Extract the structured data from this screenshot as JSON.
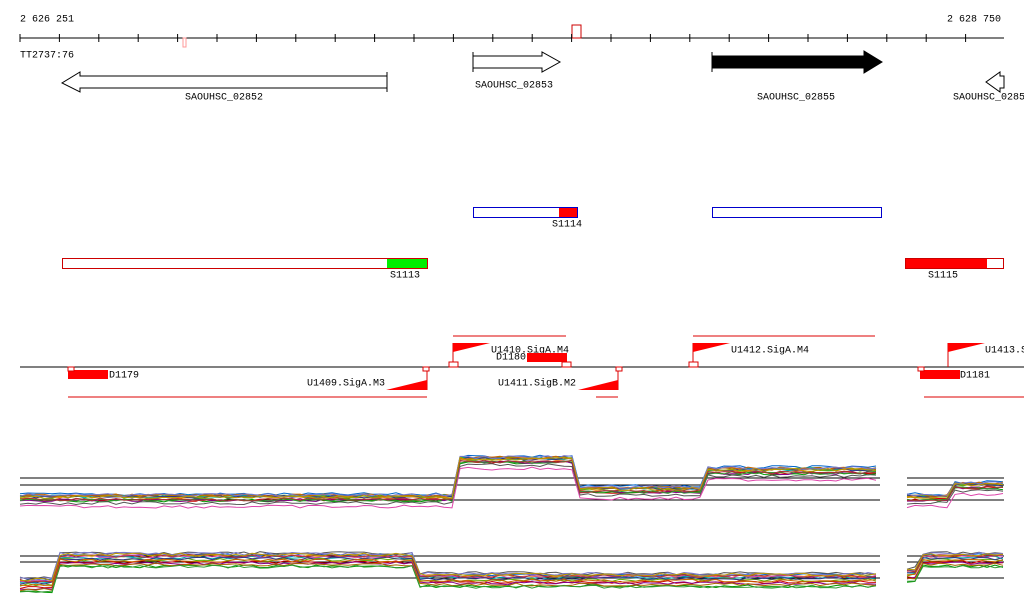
{
  "ruler": {
    "start": "2 626 251",
    "end": "2 628 750"
  },
  "track_label": "TT2737:76",
  "genes": [
    {
      "label": "SAOUHSC_02852"
    },
    {
      "label": "SAOUHSC_02853"
    },
    {
      "label": "SAOUHSC_02855"
    },
    {
      "label": "SAOUHSC_0285"
    }
  ],
  "segments": [
    {
      "label": "S1114"
    },
    {
      "label": "S1113"
    },
    {
      "label": "S1115"
    }
  ],
  "features": [
    {
      "label": "U1410.SigA.M4"
    },
    {
      "label": "D1180"
    },
    {
      "label": "U1412.SigA.M4"
    },
    {
      "label": "U1413.S"
    },
    {
      "label": "D1179"
    },
    {
      "label": "U1409.SigA.M3"
    },
    {
      "label": "U1411.SigB.M2"
    },
    {
      "label": "D1181"
    }
  ]
}
